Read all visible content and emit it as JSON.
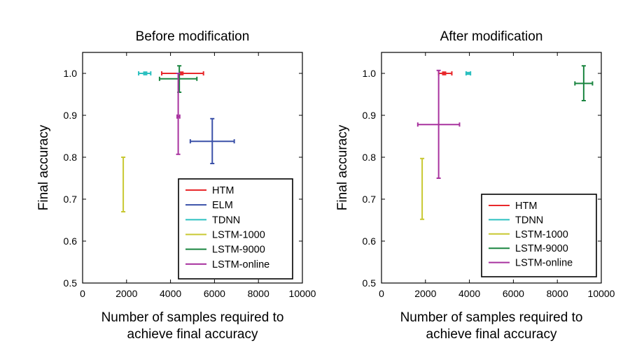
{
  "chart_data": [
    {
      "type": "scatter",
      "title": "Before modification",
      "xlabel": [
        "Number of samples required to",
        "achieve final accuracy"
      ],
      "ylabel": "Final accuracy",
      "xlim": [
        0,
        10000
      ],
      "ylim": [
        0.5,
        1.05
      ],
      "xticks": [
        "0",
        "2000",
        "4000",
        "6000",
        "8000",
        "10000"
      ],
      "yticks": [
        "0.5",
        "0.6",
        "0.7",
        "0.8",
        "0.9",
        "1.0"
      ],
      "legend_position": "lower-right",
      "grid": false,
      "series": [
        {
          "name": "HTM",
          "color": "#e8282b",
          "x": 4500,
          "x_err": [
            3600,
            5500
          ],
          "y": 1.0,
          "y_err": [
            0.997,
            1.003
          ]
        },
        {
          "name": "ELM",
          "color": "#3a50a8",
          "x": 5900,
          "x_err": [
            4900,
            6900
          ],
          "y": 0.838,
          "y_err": [
            0.785,
            0.892
          ]
        },
        {
          "name": "TDNN",
          "color": "#2cc0c0",
          "x": 2850,
          "x_err": [
            2550,
            3100
          ],
          "y": 1.0,
          "y_err": [
            0.997,
            1.003
          ]
        },
        {
          "name": "LSTM-1000",
          "color": "#c8c832",
          "x": 1850,
          "x_err": [
            1850,
            1850
          ],
          "y": 0.735,
          "y_err": [
            0.67,
            0.8
          ]
        },
        {
          "name": "LSTM-9000",
          "color": "#1a8540",
          "x": 4400,
          "x_err": [
            3500,
            5200
          ],
          "y": 0.987,
          "y_err": [
            0.955,
            1.018
          ]
        },
        {
          "name": "LSTM-online",
          "color": "#a8339f",
          "x": 4350,
          "x_err": [
            4300,
            4420
          ],
          "y": 0.897,
          "y_err": [
            0.807,
            1.0
          ]
        }
      ]
    },
    {
      "type": "scatter",
      "title": "After modification",
      "xlabel": [
        "Number of samples required to",
        "achieve final accuracy"
      ],
      "ylabel": "Final accuracy",
      "xlim": [
        0,
        10000
      ],
      "ylim": [
        0.5,
        1.05
      ],
      "xticks": [
        "0",
        "2000",
        "4000",
        "6000",
        "8000",
        "10000"
      ],
      "yticks": [
        "0.5",
        "0.6",
        "0.7",
        "0.8",
        "0.9",
        "1.0"
      ],
      "legend_position": "lower-right",
      "grid": false,
      "series": [
        {
          "name": "HTM",
          "color": "#e8282b",
          "x": 2850,
          "x_err": [
            2600,
            3200
          ],
          "y": 1.0,
          "y_err": [
            0.997,
            1.003
          ]
        },
        {
          "name": "TDNN",
          "color": "#2cc0c0",
          "x": 3950,
          "x_err": [
            3850,
            4050
          ],
          "y": 1.0,
          "y_err": [
            0.998,
            1.002
          ]
        },
        {
          "name": "LSTM-1000",
          "color": "#c8c832",
          "x": 1850,
          "x_err": [
            1850,
            1850
          ],
          "y": 0.725,
          "y_err": [
            0.652,
            0.797
          ]
        },
        {
          "name": "LSTM-9000",
          "color": "#1a8540",
          "x": 9200,
          "x_err": [
            8800,
            9600
          ],
          "y": 0.976,
          "y_err": [
            0.935,
            1.018
          ]
        },
        {
          "name": "LSTM-online",
          "color": "#a8339f",
          "x": 2600,
          "x_err": [
            1650,
            3550
          ],
          "y": 0.878,
          "y_err": [
            0.75,
            1.007
          ]
        }
      ]
    }
  ]
}
